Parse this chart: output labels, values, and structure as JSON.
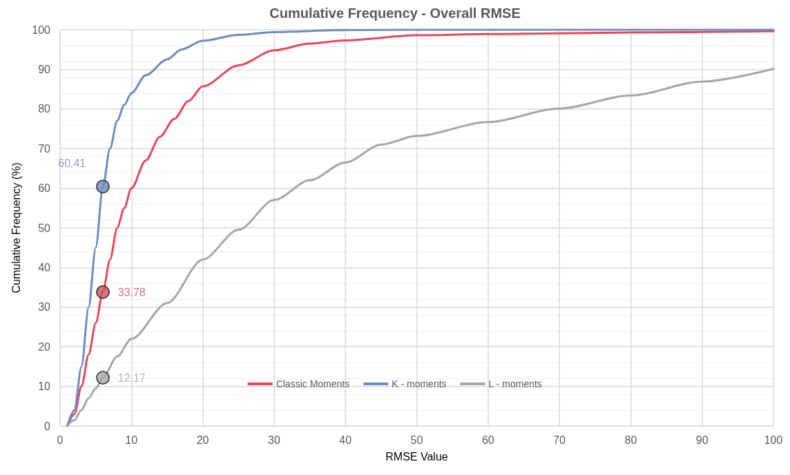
{
  "chart_data": {
    "type": "line",
    "title": "Cumulative Frequency - Overall RMSE",
    "xlabel": "RMSE Value",
    "ylabel": "Cumulative Frequency (%)",
    "xlim": [
      0,
      100
    ],
    "xticks": [
      0,
      10,
      20,
      30,
      40,
      50,
      60,
      70,
      80,
      90,
      100
    ],
    "ylim": [
      0,
      100
    ],
    "yticks": [
      0,
      10,
      20,
      30,
      40,
      50,
      60,
      70,
      80,
      90,
      100
    ],
    "grid": true,
    "legend": "bottom",
    "marker": "none",
    "line_style": "solid",
    "series": [
      {
        "name": "Classic Moments",
        "color": "#e8475a",
        "x": [
          1,
          2,
          3,
          4,
          5,
          6,
          7,
          8,
          9,
          10,
          12,
          14,
          16,
          18,
          20,
          25,
          30,
          35,
          40,
          50,
          60,
          70,
          80,
          100
        ],
        "values": [
          0,
          3,
          10,
          18,
          26,
          33.8,
          42,
          50,
          55,
          60,
          67,
          73,
          77.5,
          82,
          85.7,
          91,
          94.8,
          96.5,
          97.3,
          98.6,
          98.9,
          99.1,
          99.3,
          99.6
        ]
      },
      {
        "name": "K - moments",
        "color": "#6f8bbf",
        "x": [
          1,
          2,
          3,
          4,
          5,
          6,
          7,
          8,
          9,
          10,
          12,
          15,
          17,
          20,
          25,
          30,
          40,
          50,
          100
        ],
        "values": [
          0,
          4,
          15,
          30,
          45,
          60.4,
          70,
          77,
          81,
          84,
          88.5,
          92.5,
          95,
          97.2,
          98.7,
          99.4,
          99.9,
          100,
          100
        ]
      },
      {
        "name": "L - moments",
        "color": "#a6a6a6",
        "x": [
          1,
          2,
          3,
          4,
          5,
          6,
          8,
          10,
          15,
          20,
          25,
          30,
          35,
          40,
          45,
          50,
          60,
          70,
          80,
          90,
          100
        ],
        "values": [
          0,
          1.5,
          4,
          7,
          9.5,
          12.17,
          17.5,
          22,
          31,
          42,
          49.5,
          57,
          62,
          66.5,
          71,
          73.2,
          76.7,
          80.1,
          83.4,
          86.9,
          90.1
        ]
      },
      {
        "type": "scatter",
        "marker": "circle",
        "color": "#6f8bbf",
        "x": [
          6
        ],
        "values": [
          60.41
        ],
        "data_labels": true
      },
      {
        "type": "scatter",
        "marker": "circle",
        "color": "#c9525e",
        "x": [
          6
        ],
        "values": [
          33.78
        ],
        "data_labels": true
      },
      {
        "type": "scatter",
        "marker": "circle",
        "color": "#a6a6a6",
        "x": [
          6
        ],
        "values": [
          12.17
        ],
        "data_labels": true
      }
    ]
  }
}
